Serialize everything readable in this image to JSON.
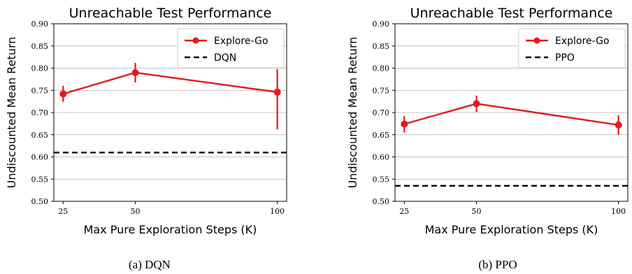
{
  "chart_data": [
    {
      "type": "line",
      "title": "Unreachable Test Performance",
      "xlabel": "Max Pure Exploration Steps (K)",
      "ylabel": "Undiscounted Mean Return",
      "caption": "(a) DQN",
      "x_categories": [
        "25",
        "50",
        "100"
      ],
      "ylim": [
        0.5,
        0.9
      ],
      "yticks": [
        "0.50",
        "0.55",
        "0.60",
        "0.65",
        "0.70",
        "0.75",
        "0.80",
        "0.85",
        "0.90"
      ],
      "grid": "horizontal",
      "legend_position": "top-right",
      "series": [
        {
          "name": "Explore-Go",
          "color": "#e41a1c",
          "style": "solid-with-markers",
          "values": [
            0.742,
            0.79,
            0.746
          ],
          "err_low": [
            0.724,
            0.768,
            0.662
          ],
          "err_high": [
            0.76,
            0.812,
            0.798
          ]
        }
      ],
      "baseline": {
        "name": "DQN",
        "value": 0.61,
        "color": "#000000",
        "style": "dashed"
      }
    },
    {
      "type": "line",
      "title": "Unreachable Test Performance",
      "xlabel": "Max Pure Exploration Steps (K)",
      "ylabel": "Undiscounted Mean Return",
      "caption": "(b) PPO",
      "x_categories": [
        "25",
        "50",
        "100"
      ],
      "ylim": [
        0.5,
        0.9
      ],
      "yticks": [
        "0.50",
        "0.55",
        "0.60",
        "0.65",
        "0.70",
        "0.75",
        "0.80",
        "0.85",
        "0.90"
      ],
      "grid": "horizontal",
      "legend_position": "top-right",
      "series": [
        {
          "name": "Explore-Go",
          "color": "#e41a1c",
          "style": "solid-with-markers",
          "values": [
            0.674,
            0.72,
            0.672
          ],
          "err_low": [
            0.655,
            0.701,
            0.65
          ],
          "err_high": [
            0.692,
            0.738,
            0.694
          ]
        }
      ],
      "baseline": {
        "name": "PPO",
        "value": 0.535,
        "color": "#000000",
        "style": "dashed"
      }
    }
  ]
}
